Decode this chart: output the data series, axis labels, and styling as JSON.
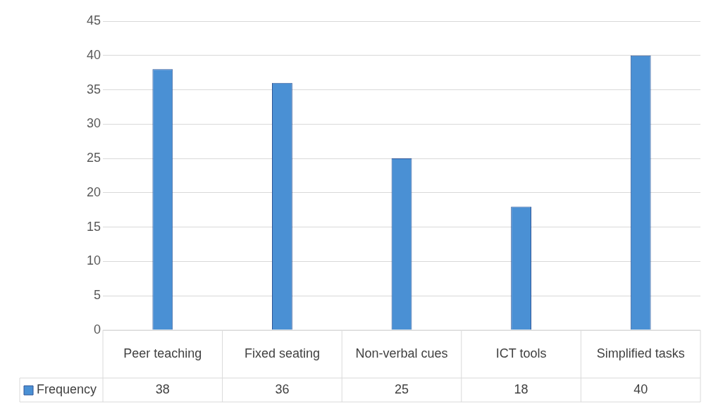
{
  "chart_data": {
    "type": "bar",
    "categories": [
      "Peer teaching",
      "Fixed seating",
      "Non-verbal cues",
      "ICT tools",
      "Simplified tasks"
    ],
    "series": [
      {
        "name": "Frequency",
        "color": "#4a90d4",
        "values": [
          38,
          36,
          25,
          18,
          40
        ]
      }
    ],
    "ylim": [
      0,
      45
    ],
    "yticks": [
      0,
      5,
      10,
      15,
      20,
      25,
      30,
      35,
      40,
      45
    ],
    "grid": "y",
    "legend": "bottom left",
    "data_labels": true
  }
}
